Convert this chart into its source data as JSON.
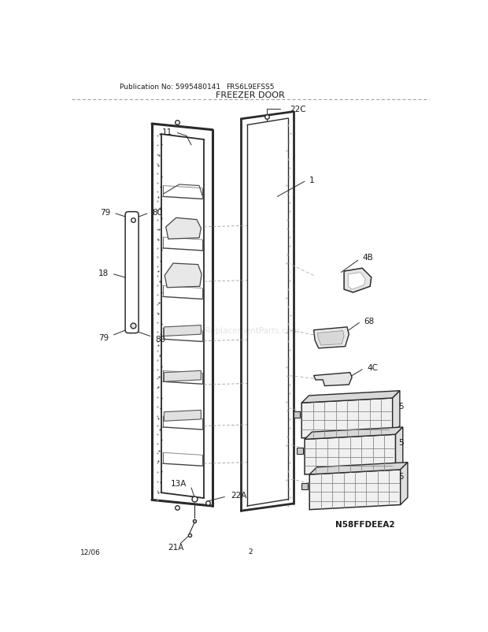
{
  "title": "FREEZER DOOR",
  "pub_no": "Publication No: 5995480141",
  "model": "FRS6L9EFSS5",
  "diagram_id": "N58FFDEEA2",
  "date": "12/06",
  "page": "2",
  "bg_color": "#ffffff",
  "line_color": "#2a2a2a",
  "lc_gray": "#888888"
}
